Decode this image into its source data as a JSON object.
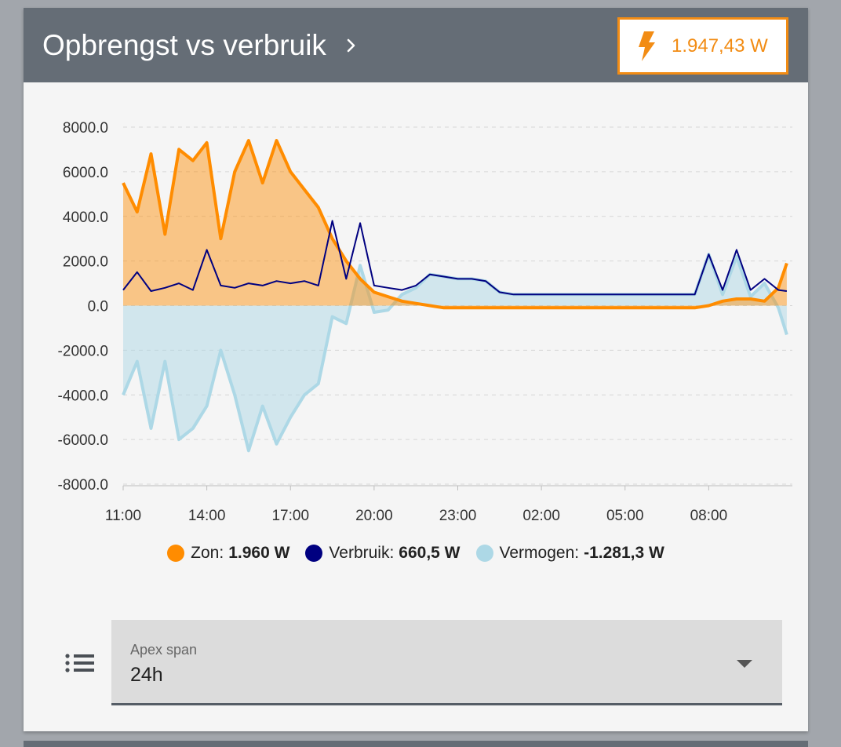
{
  "card": {
    "title": "Opbrengst vs verbruik",
    "power_value": "1.947,43 W",
    "icons": {
      "title_more": "chevron-right-icon",
      "power": "lightning-bolt-icon",
      "menu": "list-icon",
      "dropdown": "caret-down-icon"
    }
  },
  "colors": {
    "header_bg": "#656d76",
    "accent": "#f28c14",
    "zon": "#ff8c00",
    "verbruik": "#000080",
    "vermogen": "#add8e6"
  },
  "legend": [
    {
      "label": "Zon:",
      "value": "1.960 W",
      "color": "#ff8c00"
    },
    {
      "label": "Verbruik:",
      "value": "660,5 W",
      "color": "#000080"
    },
    {
      "label": "Vermogen:",
      "value": "-1.281,3 W",
      "color": "#add8e6"
    }
  ],
  "select": {
    "label": "Apex span",
    "value": "24h"
  },
  "chart_data": {
    "type": "area",
    "ylim": [
      -8000,
      8000
    ],
    "y_ticks": [
      "8000.0",
      "6000.0",
      "4000.0",
      "2000.0",
      "0.0",
      "-2000.0",
      "-4000.0",
      "-6000.0",
      "-8000.0"
    ],
    "x_tick_labels": [
      "11:00",
      "14:00",
      "17:00",
      "20:00",
      "23:00",
      "02:00",
      "05:00",
      "08:00"
    ],
    "grid": true,
    "legend_position": "bottom",
    "x_hours": [
      0,
      0.5,
      1,
      1.5,
      2,
      2.5,
      3,
      3.5,
      4,
      4.5,
      5,
      5.5,
      6,
      6.5,
      7,
      7.5,
      8,
      8.5,
      9,
      9.5,
      10,
      10.5,
      11,
      11.5,
      12,
      12.5,
      13,
      13.5,
      14,
      14.5,
      15,
      15.5,
      16,
      16.5,
      17,
      17.5,
      18,
      18.5,
      19,
      19.5,
      20,
      20.5,
      21,
      21.5,
      22,
      22.5,
      23,
      23.5,
      23.8
    ],
    "series": [
      {
        "name": "Zon",
        "color": "#ff8c00",
        "values": [
          5500,
          4200,
          6800,
          3200,
          7000,
          6500,
          7300,
          3000,
          6000,
          7400,
          5500,
          7400,
          6000,
          5200,
          4400,
          3000,
          2000,
          1200,
          600,
          400,
          200,
          100,
          0,
          -100,
          -100,
          -100,
          -100,
          -100,
          -100,
          -100,
          -100,
          -100,
          -100,
          -100,
          -100,
          -100,
          -100,
          -100,
          -100,
          -100,
          -100,
          -100,
          0,
          200,
          300,
          300,
          200,
          800,
          1900
        ]
      },
      {
        "name": "Verbruik",
        "color": "#000080",
        "values": [
          700,
          1500,
          650,
          800,
          1000,
          700,
          2500,
          900,
          800,
          1000,
          900,
          1100,
          1000,
          1100,
          900,
          3800,
          1200,
          3700,
          900,
          800,
          700,
          900,
          1400,
          1300,
          1200,
          1200,
          1100,
          600,
          500,
          500,
          500,
          500,
          500,
          500,
          500,
          500,
          500,
          500,
          500,
          500,
          500,
          500,
          2300,
          700,
          2500,
          700,
          1200,
          700,
          650
        ]
      },
      {
        "name": "Vermogen",
        "color": "#add8e6",
        "values": [
          -4000,
          -2500,
          -5500,
          -2500,
          -6000,
          -5500,
          -4500,
          -2000,
          -4000,
          -6500,
          -4500,
          -6200,
          -5000,
          -4000,
          -3500,
          -500,
          -800,
          1800,
          -300,
          -200,
          500,
          800,
          1400,
          1300,
          1200,
          1200,
          1100,
          600,
          500,
          500,
          500,
          500,
          500,
          500,
          500,
          500,
          500,
          500,
          500,
          500,
          500,
          500,
          2300,
          500,
          2200,
          400,
          1000,
          -100,
          -1300
        ]
      }
    ]
  }
}
